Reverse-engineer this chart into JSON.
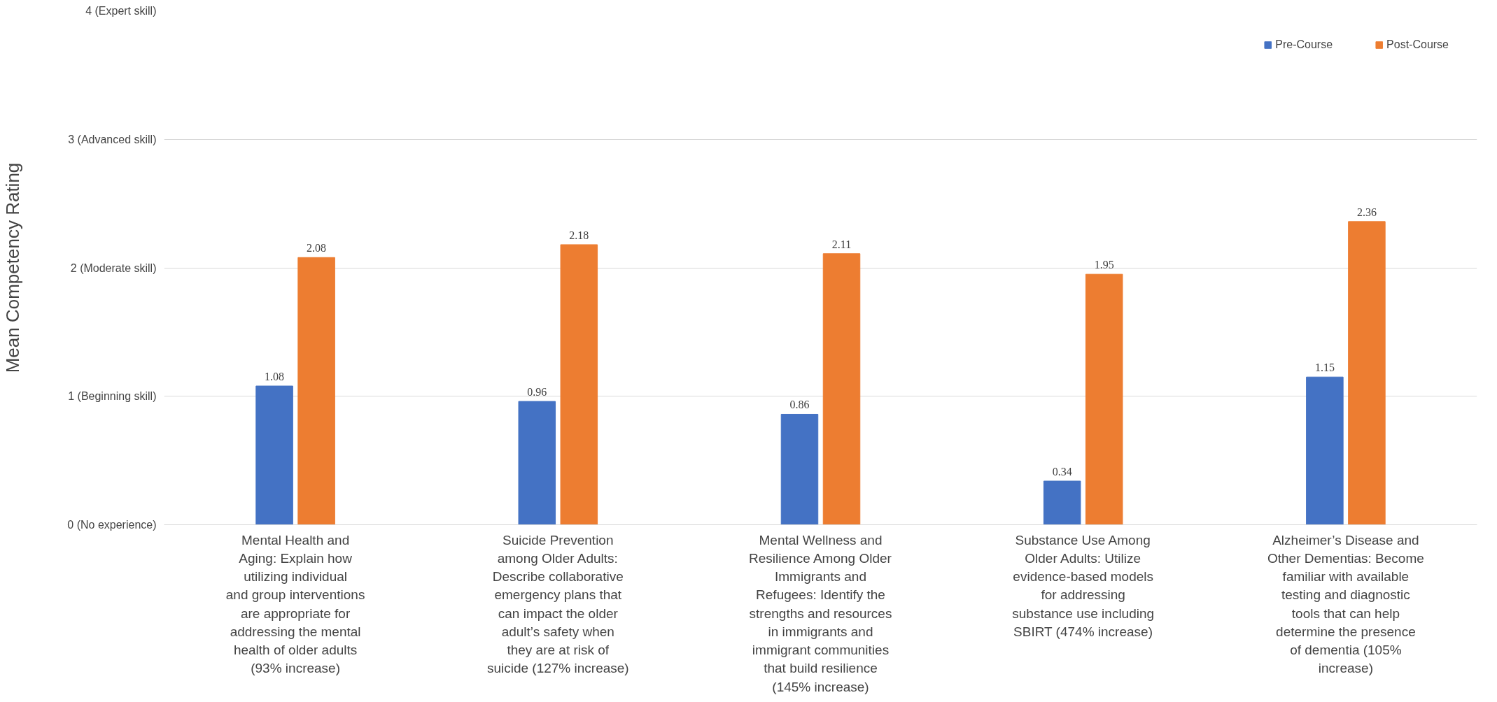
{
  "chart_data": {
    "type": "bar",
    "ylabel": "Mean Competency Rating",
    "categories": [
      "Mental Health and Aging: Explain how utilizing individual and group interventions are appropriate for addressing the mental health of older adults (93% increase)",
      "Suicide Prevention among Older Adults: Describe collaborative emergency plans that can impact the older adult’s safety when they are at risk of suicide (127% increase)",
      "Mental Wellness and Resilience Among Older Immigrants and Refugees: Identify the strengths and resources in immigrants and immigrant communities that build resilience (145% increase)",
      "Substance Use Among Older Adults: Utilize evidence-based models for addressing substance use including SBIRT (474% increase)",
      "Alzheimer’s Disease and Other Dementias: Become familiar with available testing and diagnostic tools that can help determine the presence of dementia (105% increase)"
    ],
    "series": [
      {
        "name": "Pre-Course",
        "color": "#4472c4",
        "values": [
          1.08,
          0.96,
          0.86,
          0.34,
          1.15
        ]
      },
      {
        "name": "Post-Course",
        "color": "#ed7d31",
        "values": [
          2.08,
          2.18,
          2.11,
          1.95,
          2.36
        ]
      }
    ],
    "ylim": [
      0,
      4
    ],
    "yticks": [
      {
        "value": 0,
        "label": "0 (No experience)"
      },
      {
        "value": 1,
        "label": "1 (Beginning skill)"
      },
      {
        "value": 2,
        "label": "2 (Moderate skill)"
      },
      {
        "value": 3,
        "label": "3 (Advanced skill)"
      },
      {
        "value": 4,
        "label": "4 (Expert skill)"
      }
    ],
    "grid": "y",
    "legend": "top right",
    "data_labels": true
  }
}
